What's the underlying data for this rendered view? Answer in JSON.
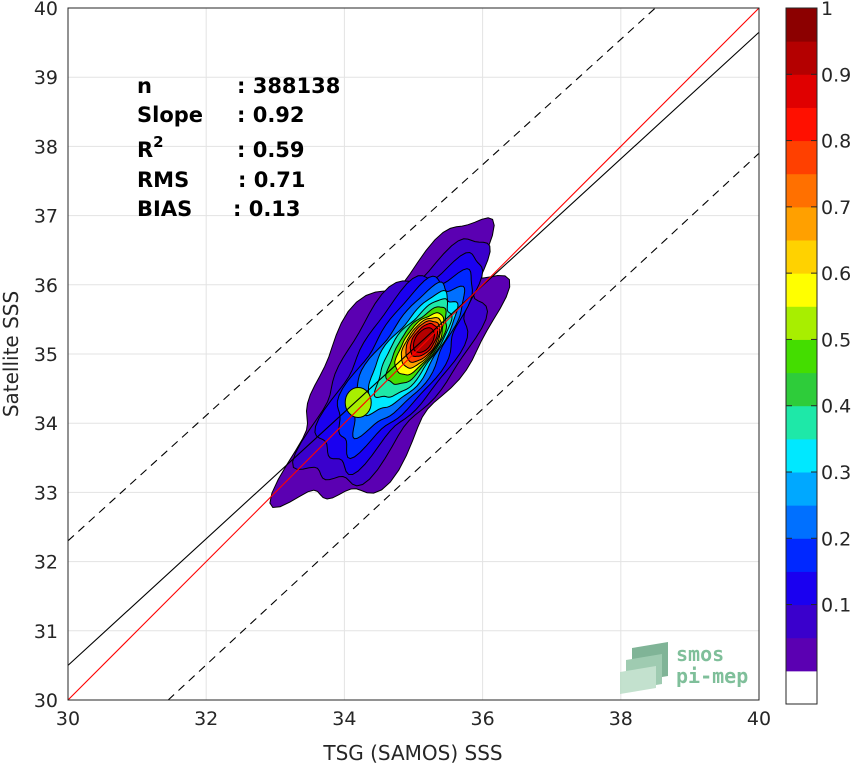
{
  "chart_data": {
    "type": "contour",
    "xlabel": "TSG (SAMOS) SSS",
    "ylabel": "Satellite SSS",
    "xlim": [
      30,
      40
    ],
    "ylim": [
      30,
      40
    ],
    "xticks": [
      "30",
      "32",
      "34",
      "36",
      "38",
      "40"
    ],
    "yticks": [
      "30",
      "31",
      "32",
      "33",
      "34",
      "35",
      "36",
      "37",
      "38",
      "39",
      "40"
    ],
    "grid": true,
    "stats": [
      {
        "label": "n",
        "value": ": 388138"
      },
      {
        "label": "Slope",
        "value": ": 0.92"
      },
      {
        "label": "R",
        "sup": "2",
        "value": ": 0.59"
      },
      {
        "label": "RMS",
        "value": ": 0.71"
      },
      {
        "label": "BIAS",
        "value": ": 0.13"
      }
    ],
    "lines": {
      "identity": {
        "x": [
          30,
          40
        ],
        "y": [
          30,
          40
        ],
        "color": "#ff0000"
      },
      "fit": {
        "x": [
          30,
          40
        ],
        "y": [
          30.5,
          39.65
        ],
        "color": "#000000"
      },
      "upper_bound": {
        "x": [
          30,
          38.5
        ],
        "y": [
          32.3,
          40
        ],
        "color": "#000000",
        "dashed": true
      },
      "lower_bound": {
        "x": [
          31.45,
          40
        ],
        "y": [
          30,
          37.9
        ],
        "color": "#000000",
        "dashed": true
      }
    },
    "density": {
      "center": [
        35.15,
        35.2
      ],
      "secondary_center": [
        34.2,
        34.3
      ],
      "orientation_deg": 55
    },
    "colorbar": {
      "range": [
        0,
        1
      ],
      "ticks": [
        "0.1",
        "0.2",
        "0.3",
        "0.4",
        "0.5",
        "0.6",
        "0.7",
        "0.8",
        "0.9",
        "1"
      ],
      "bottom_color": "#ffffff",
      "colors": [
        "#5b00b2",
        "#3a00cc",
        "#1a00f0",
        "#0028ff",
        "#0070ff",
        "#00a8ff",
        "#00e8ff",
        "#1ee8a8",
        "#2ecc3a",
        "#44dd00",
        "#a8ee00",
        "#ffff00",
        "#ffd200",
        "#ffa000",
        "#ff7000",
        "#ff4000",
        "#ff1000",
        "#e00000",
        "#b40000",
        "#8c0000"
      ]
    },
    "logo": {
      "line1": "smos",
      "line2": "pi-mep"
    }
  }
}
